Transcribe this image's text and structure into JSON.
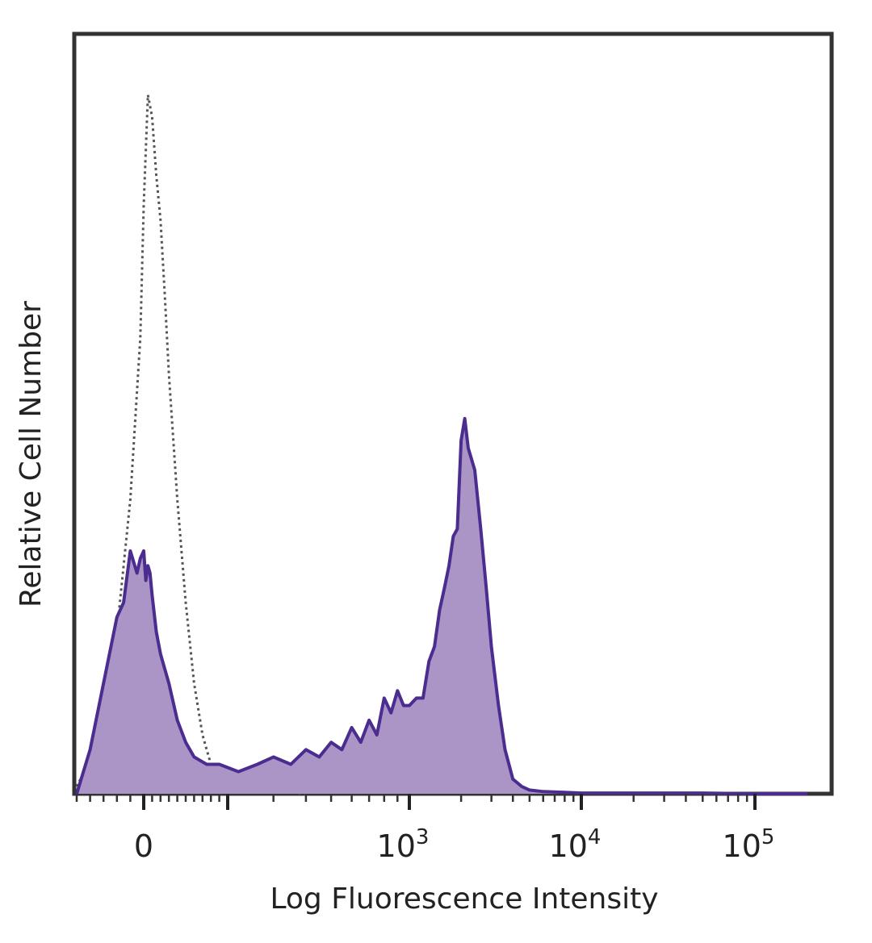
{
  "chart_data": {
    "type": "area",
    "title": "",
    "xlabel": "Log Fluorescence Intensity",
    "ylabel": "Relative Cell Number",
    "x_scale": "biexponential",
    "xlim": [
      -100,
      200000
    ],
    "ylim": [
      0,
      1.0
    ],
    "grid": false,
    "legend": "none",
    "xticks": [
      {
        "label": "0",
        "base": "0",
        "exp": "",
        "value": 0
      },
      {
        "label": "10^3",
        "base": "10",
        "exp": "3",
        "value": 1000
      },
      {
        "label": "10^4",
        "base": "10",
        "exp": "4",
        "value": 10000
      },
      {
        "label": "10^5",
        "base": "10",
        "exp": "5",
        "value": 100000
      }
    ],
    "series": [
      {
        "style": "dotted-outline",
        "color": "#555555",
        "x": [
          -100,
          -60,
          -40,
          -20,
          -5,
          0,
          10,
          20,
          30,
          40,
          50,
          60,
          80,
          100,
          120,
          140,
          160,
          200,
          250,
          300,
          400
        ],
        "y": [
          0.01,
          0.08,
          0.22,
          0.4,
          0.62,
          0.8,
          0.95,
          0.92,
          0.84,
          0.78,
          0.68,
          0.57,
          0.4,
          0.26,
          0.15,
          0.08,
          0.04,
          0.02,
          0.01,
          0.005,
          0.0
        ]
      },
      {
        "style": "filled",
        "color": "#4b2c8f",
        "fill": "#ab95c7",
        "x": [
          -100,
          -80,
          -60,
          -40,
          -30,
          -20,
          -10,
          -5,
          0,
          5,
          10,
          15,
          20,
          30,
          40,
          50,
          60,
          80,
          100,
          120,
          150,
          180,
          220,
          260,
          300,
          350,
          400,
          450,
          500,
          550,
          600,
          650,
          700,
          750,
          800,
          850,
          900,
          950,
          1000,
          1100,
          1200,
          1300,
          1400,
          1500,
          1600,
          1700,
          1800,
          1900,
          2000,
          2100,
          2200,
          2400,
          2600,
          2800,
          3000,
          3300,
          3600,
          4000,
          4500,
          5000,
          6000,
          8000,
          10000,
          20000,
          50000,
          100000,
          200000
        ],
        "y": [
          0.0,
          0.06,
          0.15,
          0.24,
          0.26,
          0.33,
          0.3,
          0.32,
          0.33,
          0.29,
          0.31,
          0.3,
          0.27,
          0.22,
          0.19,
          0.17,
          0.15,
          0.1,
          0.07,
          0.05,
          0.04,
          0.04,
          0.03,
          0.04,
          0.05,
          0.04,
          0.06,
          0.05,
          0.07,
          0.06,
          0.09,
          0.07,
          0.1,
          0.08,
          0.13,
          0.11,
          0.14,
          0.12,
          0.12,
          0.13,
          0.13,
          0.18,
          0.2,
          0.25,
          0.28,
          0.31,
          0.35,
          0.36,
          0.48,
          0.51,
          0.47,
          0.44,
          0.36,
          0.28,
          0.2,
          0.12,
          0.06,
          0.02,
          0.01,
          0.005,
          0.003,
          0.002,
          0.001,
          0.001,
          0.001,
          0.0,
          0.0
        ]
      }
    ]
  }
}
